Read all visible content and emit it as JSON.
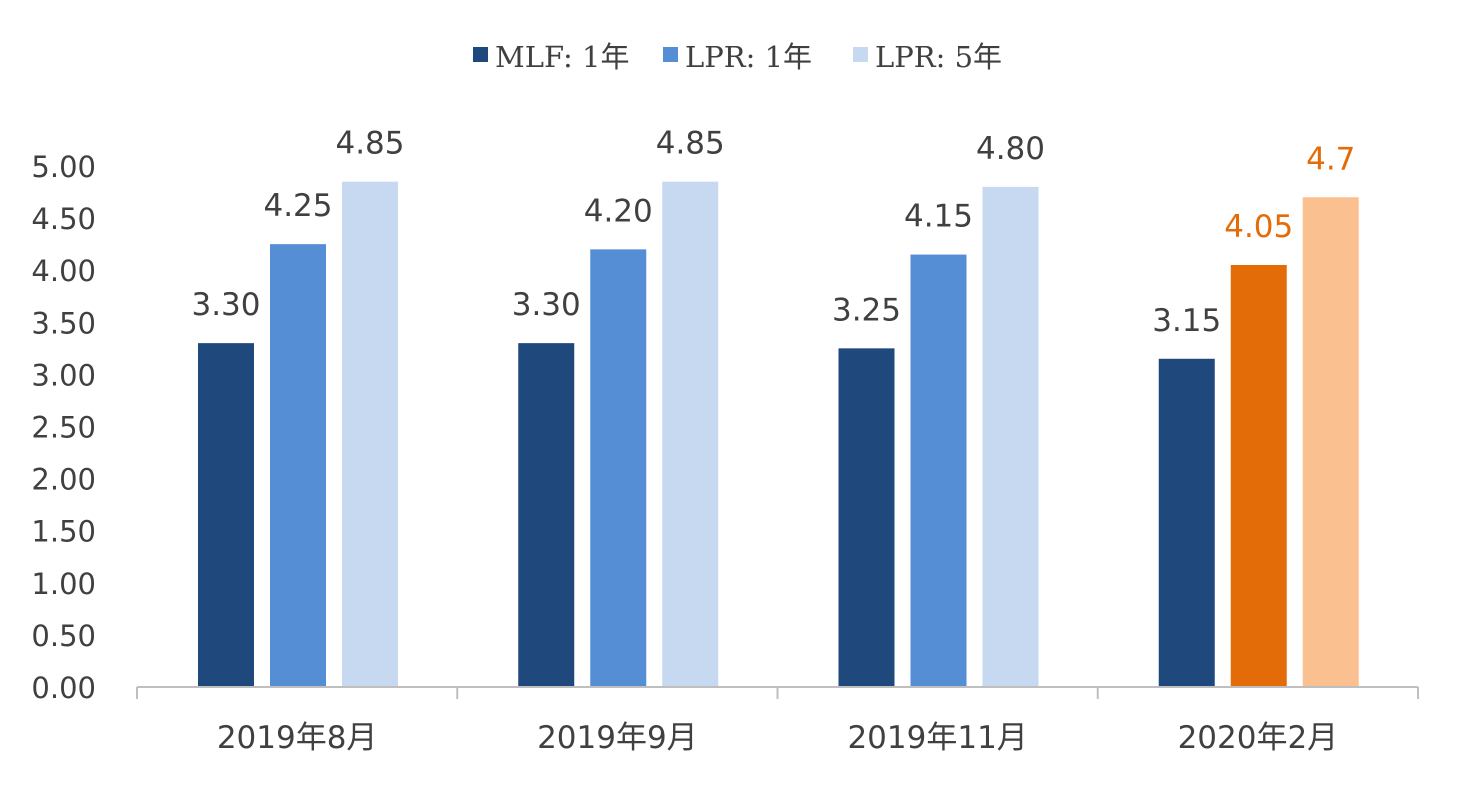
{
  "chart_data": {
    "type": "bar",
    "categories": [
      "2019年8月",
      "2019年9月",
      "2019年11月",
      "2020年2月"
    ],
    "series": [
      {
        "name": "MLF: 1年",
        "color": "#1f497d",
        "values": [
          3.3,
          3.3,
          3.25,
          3.15
        ],
        "labels": [
          "3.30",
          "3.30",
          "3.25",
          "3.15"
        ]
      },
      {
        "name": "LPR: 1年",
        "color": "#558ed5",
        "values": [
          4.25,
          4.2,
          4.15,
          4.05
        ],
        "labels": [
          "4.25",
          "4.20",
          "4.15",
          "4.05"
        ]
      },
      {
        "name": "LPR: 5年",
        "color": "#c6d9f1",
        "values": [
          4.85,
          4.85,
          4.8,
          4.7
        ],
        "labels": [
          "4.85",
          "4.85",
          "4.80",
          "4.7"
        ]
      }
    ],
    "highlight": {
      "category_index": 3,
      "series_colors": {
        "1": "#e36c09",
        "2": "#fac08f"
      },
      "label_color": "#e36c09"
    },
    "label_color": "#404040",
    "axis_color": "#bfbfbf",
    "ylim": [
      0,
      5
    ],
    "ytick_step": 0.5,
    "ytick_labels": [
      "0.00",
      "0.50",
      "1.00",
      "1.50",
      "2.00",
      "2.50",
      "3.00",
      "3.50",
      "4.00",
      "4.50",
      "5.00"
    ],
    "grid": false,
    "legend_position": "top-center",
    "title": "",
    "xlabel": "",
    "ylabel": ""
  }
}
